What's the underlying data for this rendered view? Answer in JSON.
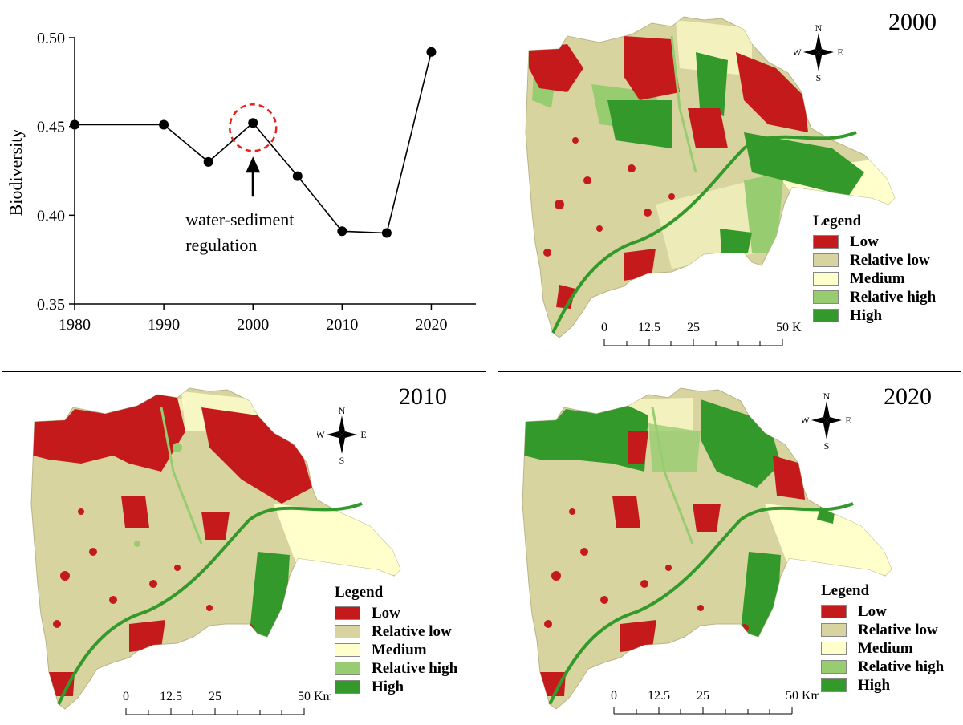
{
  "chart_data": {
    "type": "line",
    "title": "",
    "xlabel": "",
    "ylabel": "Biodiversity",
    "xlim": [
      1980,
      2025
    ],
    "ylim": [
      0.35,
      0.5
    ],
    "x_ticks": [
      "1980",
      "1990",
      "2000",
      "2010",
      "2020"
    ],
    "y_ticks": [
      "0.35",
      "0.40",
      "0.45",
      "0.50"
    ],
    "series": [
      {
        "x": [
          1980,
          1990,
          1995,
          2000,
          2005,
          2010,
          2015,
          2020
        ],
        "values": [
          0.451,
          0.451,
          0.43,
          0.452,
          0.422,
          0.391,
          0.39,
          0.492
        ]
      }
    ],
    "annotation": {
      "line1": "water-sediment",
      "line2": "regulation",
      "target_x": 2000,
      "target_y": 0.452
    },
    "grid": false,
    "legend": "none"
  },
  "maps": [
    {
      "id": "map-2000",
      "year": "2000"
    },
    {
      "id": "map-2010",
      "year": "2010"
    },
    {
      "id": "map-2020",
      "year": "2020"
    }
  ],
  "legend": {
    "title": "Legend",
    "items": [
      {
        "label": "Low",
        "color": "#c41a1c"
      },
      {
        "label": "Relative low",
        "color": "#d8d4a0"
      },
      {
        "label": "Medium",
        "color": "#ffffcc"
      },
      {
        "label": "Relative high",
        "color": "#98cc70"
      },
      {
        "label": "High",
        "color": "#33992a"
      }
    ]
  },
  "scale": {
    "ticks": [
      "0",
      "12.5",
      "25",
      "50 Km"
    ]
  },
  "compass": {
    "n": "N",
    "s": "S",
    "e": "E",
    "w": "W"
  }
}
